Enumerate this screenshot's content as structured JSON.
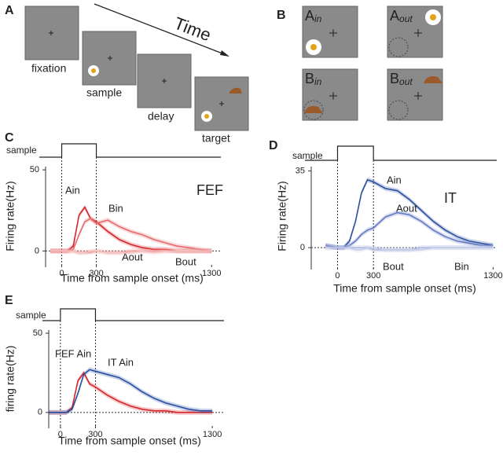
{
  "panels": {
    "a": {
      "label": "A",
      "arrow_label": "Time",
      "stages": [
        "fixation",
        "sample",
        "delay",
        "target"
      ]
    },
    "b": {
      "label": "B",
      "conditions": [
        {
          "letter": "A",
          "sub": "in"
        },
        {
          "letter": "A",
          "sub": "out"
        },
        {
          "letter": "B",
          "sub": "in"
        },
        {
          "letter": "B",
          "sub": "out"
        }
      ]
    }
  },
  "chart_data": [
    {
      "type": "line",
      "label": "C",
      "title": "FEF",
      "xlabel": "Time from sample onset (ms)",
      "ylabel": "Firing rate(Hz)",
      "stimulus": {
        "label": "sample",
        "onset": 0,
        "offset": 300
      },
      "x": [
        -100,
        0,
        50,
        100,
        150,
        200,
        250,
        300,
        400,
        500,
        600,
        700,
        800,
        900,
        1000,
        1100,
        1200,
        1300
      ],
      "series": [
        {
          "name": "Ain",
          "color": "#d7262b",
          "values": [
            0,
            0,
            0,
            3,
            22,
            27,
            20,
            18,
            12,
            7,
            4,
            2,
            1,
            1,
            0,
            0,
            0,
            0
          ]
        },
        {
          "name": "Bin",
          "color": "#e66a6c",
          "values": [
            0,
            0,
            0,
            1,
            10,
            18,
            20,
            17,
            19,
            15,
            12,
            10,
            7,
            5,
            3,
            2,
            1,
            0
          ]
        },
        {
          "name": "Aout",
          "color": "#f09a9b",
          "values": [
            0,
            0,
            0,
            0,
            -1,
            -1,
            -1,
            0,
            -1,
            -1,
            0,
            0,
            0,
            0,
            0,
            0,
            0,
            0
          ]
        },
        {
          "name": "Bout",
          "color": "#f5bcbc",
          "values": [
            0,
            0,
            0,
            0,
            -1,
            -1,
            0,
            0,
            -1,
            -1,
            -1,
            0,
            -1,
            0,
            0,
            0,
            0,
            0
          ]
        }
      ],
      "xlim": [
        -140,
        1380
      ],
      "ylim": [
        -10,
        52
      ],
      "xticks": [
        0,
        300,
        1300
      ],
      "yticks": [
        0,
        50
      ]
    },
    {
      "type": "line",
      "label": "D",
      "title": "IT",
      "xlabel": "Time from sample onset (ms)",
      "ylabel": "Firing rate(Hz)",
      "stimulus": {
        "label": "sample",
        "onset": 0,
        "offset": 300
      },
      "x": [
        -100,
        0,
        50,
        100,
        150,
        200,
        250,
        300,
        400,
        500,
        600,
        700,
        800,
        900,
        1000,
        1100,
        1200,
        1300
      ],
      "series": [
        {
          "name": "Ain",
          "color": "#2a4fa0",
          "values": [
            1,
            0,
            0,
            3,
            12,
            25,
            31,
            30,
            27,
            26,
            22,
            17,
            12,
            8,
            5,
            3,
            2,
            1
          ]
        },
        {
          "name": "Aout",
          "color": "#6479c2",
          "values": [
            1,
            0,
            0,
            1,
            3,
            6,
            8,
            9,
            14,
            16,
            15,
            12,
            8,
            5,
            3,
            2,
            1,
            1
          ]
        },
        {
          "name": "Bout",
          "color": "#a9b4dd",
          "values": [
            0,
            0,
            0,
            0,
            0,
            0,
            0,
            -1,
            -1,
            -1,
            -1,
            0,
            0,
            0,
            0,
            0,
            0,
            0
          ]
        },
        {
          "name": "Bin",
          "color": "#c4cce8",
          "values": [
            0,
            0,
            0,
            0,
            -1,
            -1,
            0,
            0,
            -1,
            -1,
            -1,
            -1,
            0,
            0,
            0,
            0,
            0,
            0
          ]
        }
      ],
      "xlim": [
        -220,
        1330
      ],
      "ylim": [
        -10,
        37
      ],
      "xticks": [
        0,
        300,
        1300
      ],
      "yticks": [
        0,
        35
      ]
    },
    {
      "type": "line",
      "label": "E",
      "xlabel": "Time from sample onset (ms)",
      "ylabel": "firing rate(Hz)",
      "stimulus": {
        "label": "sample",
        "onset": 0,
        "offset": 300
      },
      "x": [
        -100,
        0,
        50,
        100,
        150,
        200,
        250,
        300,
        400,
        500,
        600,
        700,
        800,
        900,
        1000,
        1100,
        1200,
        1300
      ],
      "series": [
        {
          "name": "FEF Ain",
          "color": "#d7262b",
          "values": [
            0,
            0,
            0,
            3,
            20,
            25,
            18,
            16,
            11,
            7,
            4,
            2,
            1,
            1,
            0,
            0,
            0,
            0
          ]
        },
        {
          "name": "IT Ain",
          "color": "#2a4fa0",
          "values": [
            0,
            0,
            0,
            2,
            12,
            24,
            27,
            26,
            24,
            22,
            18,
            13,
            9,
            6,
            4,
            2,
            1,
            1
          ]
        }
      ],
      "xlim": [
        -100,
        1400
      ],
      "ylim": [
        -10,
        52
      ],
      "xticks": [
        0,
        300,
        1300
      ],
      "yticks": [
        0,
        50
      ]
    }
  ]
}
